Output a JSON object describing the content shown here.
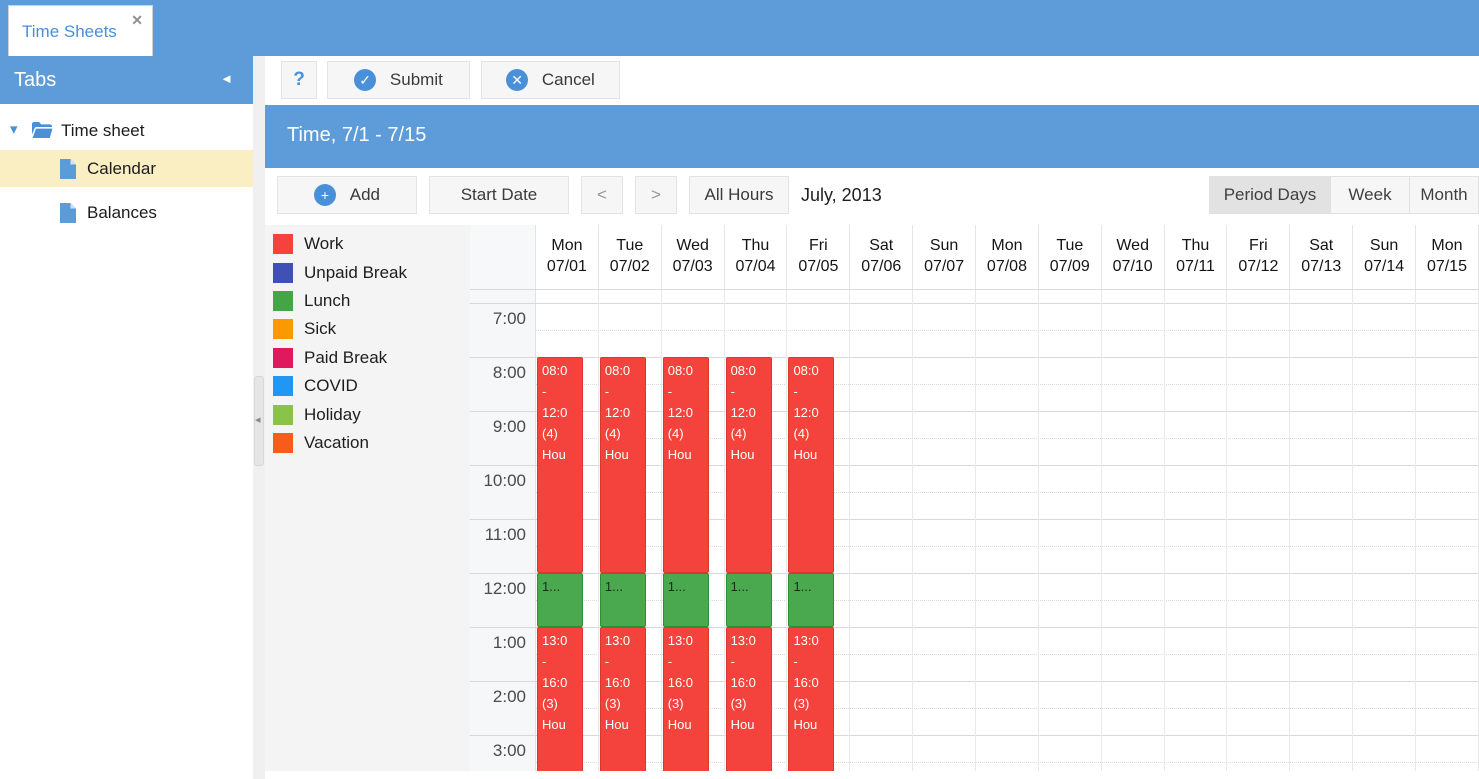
{
  "window": {
    "tab_title": "Time Sheets"
  },
  "icons": {
    "close": "✕",
    "collapse_sidebar": "◄",
    "collapse_panel": "◂",
    "tree_caret": "▾",
    "help": "?",
    "check": "✓",
    "cross": "✕",
    "plus": "+"
  },
  "sidebar": {
    "header": "Tabs",
    "tree": {
      "root_label": "Time sheet",
      "children": [
        {
          "label": "Calendar",
          "selected": true
        },
        {
          "label": "Balances",
          "selected": false
        }
      ]
    }
  },
  "toolbar": {
    "help_label": "?",
    "submit_label": "Submit",
    "cancel_label": "Cancel"
  },
  "banner": {
    "title": "Time, 7/1 - 7/15"
  },
  "controls": {
    "add_label": "Add",
    "start_date_label": "Start Date",
    "prev_label": "<",
    "next_label": ">",
    "all_hours_label": "All Hours",
    "period_label": "July, 2013",
    "views": [
      {
        "label": "Period Days",
        "active": true
      },
      {
        "label": "Week",
        "active": false
      },
      {
        "label": "Month",
        "active": false
      }
    ]
  },
  "legend": {
    "items": [
      {
        "label": "Work",
        "color": "#f4433c"
      },
      {
        "label": "Unpaid Break",
        "color": "#3f51b5"
      },
      {
        "label": "Lunch",
        "color": "#43a546"
      },
      {
        "label": "Sick",
        "color": "#fb9902"
      },
      {
        "label": "Paid Break",
        "color": "#e0195f"
      },
      {
        "label": "COVID",
        "color": "#2196f3"
      },
      {
        "label": "Holiday",
        "color": "#8bc34a"
      },
      {
        "label": "Vacation",
        "color": "#f95b1e"
      }
    ]
  },
  "calendar": {
    "days": [
      {
        "dow": "Mon",
        "date": "07/01"
      },
      {
        "dow": "Tue",
        "date": "07/02"
      },
      {
        "dow": "Wed",
        "date": "07/03"
      },
      {
        "dow": "Thu",
        "date": "07/04"
      },
      {
        "dow": "Fri",
        "date": "07/05"
      },
      {
        "dow": "Sat",
        "date": "07/06"
      },
      {
        "dow": "Sun",
        "date": "07/07"
      },
      {
        "dow": "Mon",
        "date": "07/08"
      },
      {
        "dow": "Tue",
        "date": "07/09"
      },
      {
        "dow": "Wed",
        "date": "07/10"
      },
      {
        "dow": "Thu",
        "date": "07/11"
      },
      {
        "dow": "Fri",
        "date": "07/12"
      },
      {
        "dow": "Sat",
        "date": "07/13"
      },
      {
        "dow": "Sun",
        "date": "07/14"
      },
      {
        "dow": "Mon",
        "date": "07/15"
      }
    ],
    "hours": [
      "7:00",
      "8:00",
      "9:00",
      "10:00",
      "11:00",
      "12:00",
      "1:00",
      "2:00",
      "3:00"
    ],
    "event_styles": {
      "work": {
        "bg": "#f4433c",
        "border": "#da372e",
        "text": "#ffffff"
      },
      "lunch": {
        "bg": "#4aa84f",
        "border": "#2e8d35",
        "text": "#16301a"
      }
    },
    "events": [
      {
        "day": 0,
        "kind": "work",
        "start": 8,
        "end": 12,
        "lines": [
          "08:0",
          "-",
          "12:0",
          "(4)",
          "Hou"
        ]
      },
      {
        "day": 0,
        "kind": "lunch",
        "start": 12,
        "end": 13,
        "lines": [
          "1..."
        ]
      },
      {
        "day": 0,
        "kind": "work",
        "start": 13,
        "end": 16,
        "lines": [
          "13:0",
          "-",
          "16:0",
          "(3)",
          "Hou"
        ]
      },
      {
        "day": 1,
        "kind": "work",
        "start": 8,
        "end": 12,
        "lines": [
          "08:0",
          "-",
          "12:0",
          "(4)",
          "Hou"
        ]
      },
      {
        "day": 1,
        "kind": "lunch",
        "start": 12,
        "end": 13,
        "lines": [
          "1..."
        ]
      },
      {
        "day": 1,
        "kind": "work",
        "start": 13,
        "end": 16,
        "lines": [
          "13:0",
          "-",
          "16:0",
          "(3)",
          "Hou"
        ]
      },
      {
        "day": 2,
        "kind": "work",
        "start": 8,
        "end": 12,
        "lines": [
          "08:0",
          "-",
          "12:0",
          "(4)",
          "Hou"
        ]
      },
      {
        "day": 2,
        "kind": "lunch",
        "start": 12,
        "end": 13,
        "lines": [
          "1..."
        ]
      },
      {
        "day": 2,
        "kind": "work",
        "start": 13,
        "end": 16,
        "lines": [
          "13:0",
          "-",
          "16:0",
          "(3)",
          "Hou"
        ]
      },
      {
        "day": 3,
        "kind": "work",
        "start": 8,
        "end": 12,
        "lines": [
          "08:0",
          "-",
          "12:0",
          "(4)",
          "Hou"
        ]
      },
      {
        "day": 3,
        "kind": "lunch",
        "start": 12,
        "end": 13,
        "lines": [
          "1..."
        ]
      },
      {
        "day": 3,
        "kind": "work",
        "start": 13,
        "end": 16,
        "lines": [
          "13:0",
          "-",
          "16:0",
          "(3)",
          "Hou"
        ]
      },
      {
        "day": 4,
        "kind": "work",
        "start": 8,
        "end": 12,
        "lines": [
          "08:0",
          "-",
          "12:0",
          "(4)",
          "Hou"
        ]
      },
      {
        "day": 4,
        "kind": "lunch",
        "start": 12,
        "end": 13,
        "lines": [
          "1..."
        ]
      },
      {
        "day": 4,
        "kind": "work",
        "start": 13,
        "end": 16,
        "lines": [
          "13:0",
          "-",
          "16:0",
          "(3)",
          "Hou"
        ]
      }
    ]
  }
}
